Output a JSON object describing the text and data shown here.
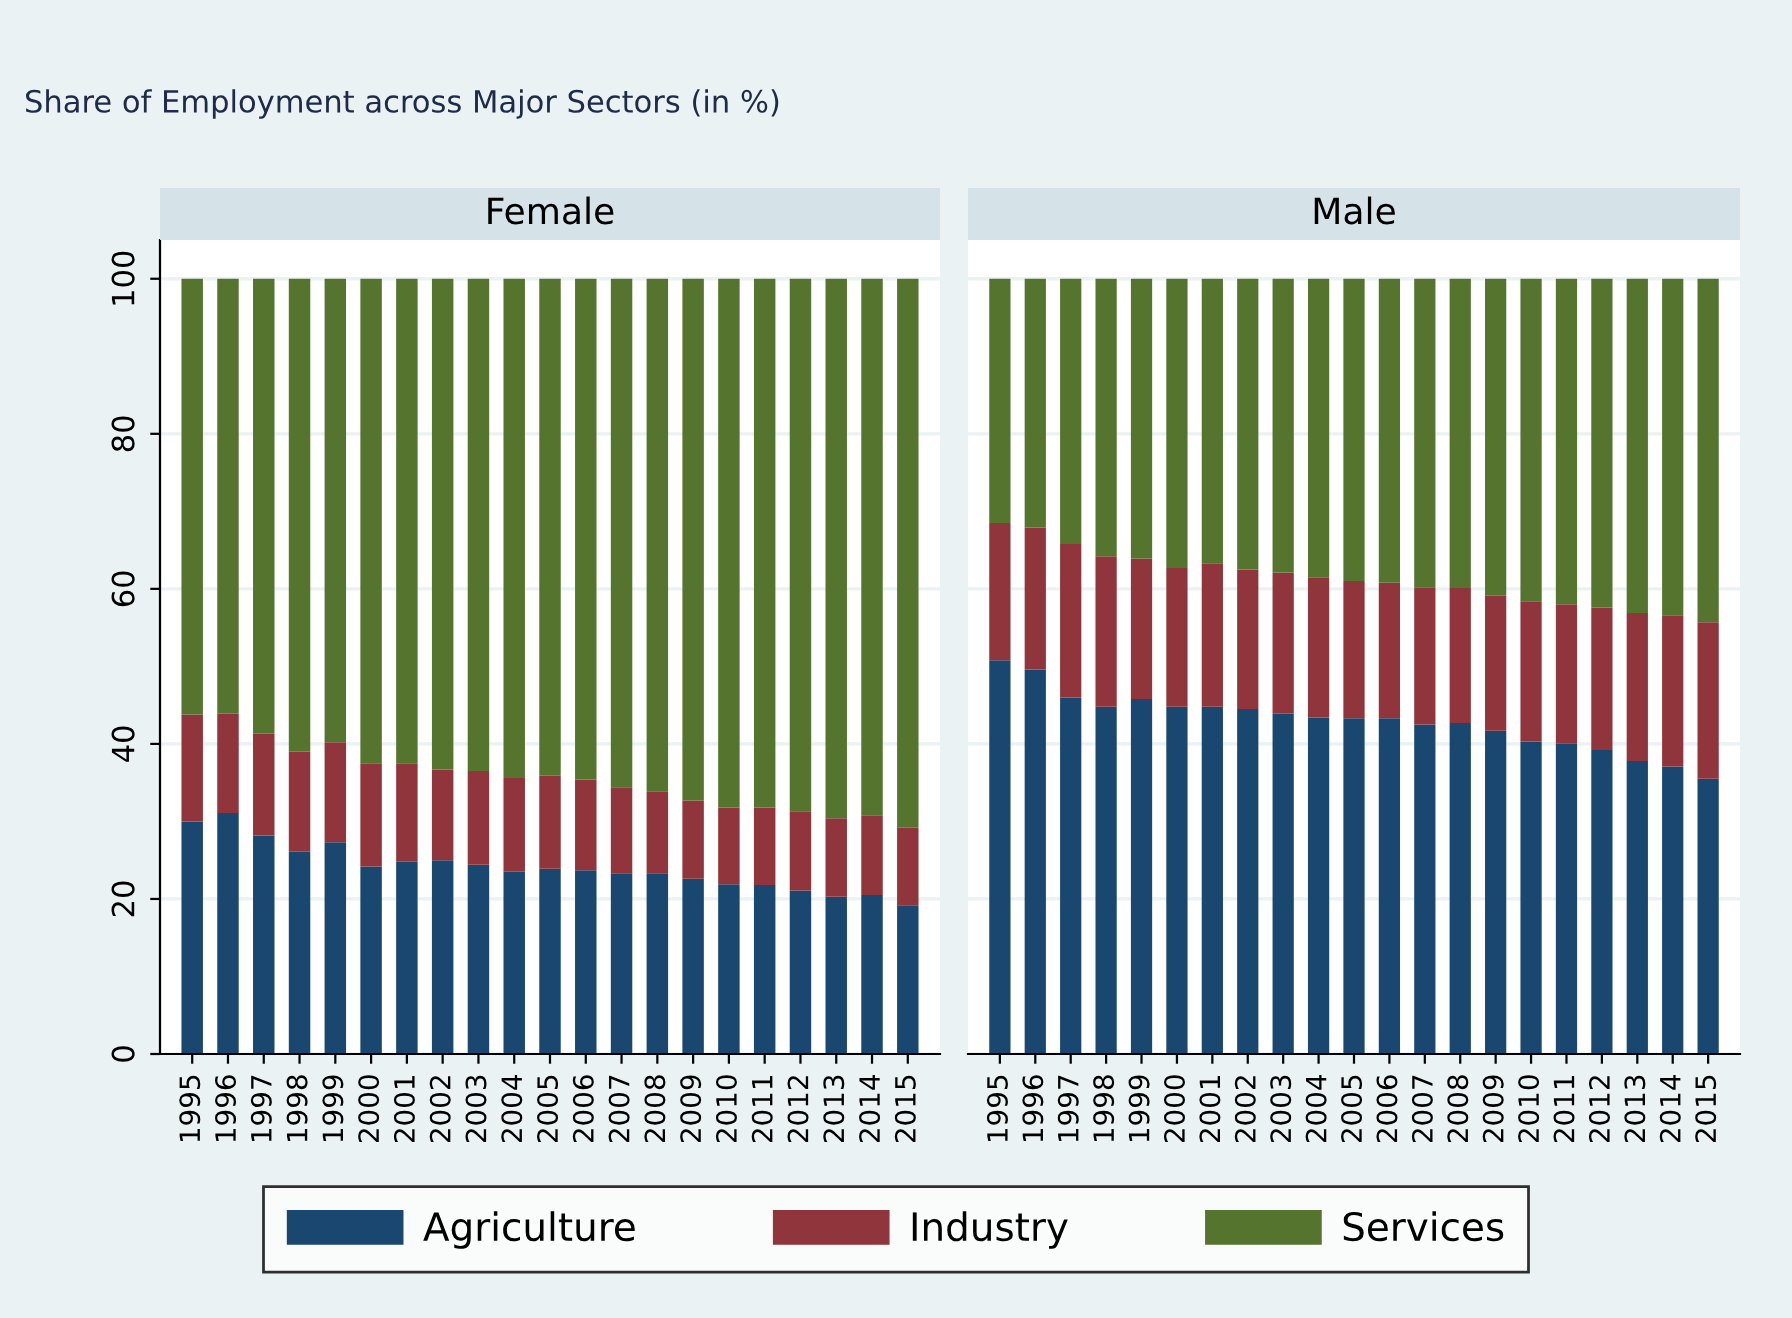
{
  "chart_data": [
    {
      "type": "bar",
      "title": "Female",
      "annotations": [
        "Share of Employment across Major Sectors (in %)"
      ],
      "stacked": true,
      "categories": [
        "1995",
        "1996",
        "1997",
        "1998",
        "1999",
        "2000",
        "2001",
        "2002",
        "2003",
        "2004",
        "2005",
        "2006",
        "2007",
        "2008",
        "2009",
        "2010",
        "2011",
        "2012",
        "2013",
        "2014",
        "2015"
      ],
      "series": [
        {
          "name": "Agriculture",
          "color": "#1a476f",
          "values": [
            30.0,
            31.1,
            28.2,
            26.1,
            27.3,
            24.2,
            24.8,
            25.0,
            24.4,
            23.5,
            23.9,
            23.7,
            23.3,
            23.3,
            22.6,
            21.9,
            21.8,
            21.1,
            20.3,
            20.5,
            19.2
          ]
        },
        {
          "name": "Industry",
          "color": "#90353b",
          "values": [
            13.8,
            12.8,
            13.1,
            12.9,
            12.9,
            13.3,
            12.7,
            11.7,
            12.1,
            12.1,
            12.0,
            11.7,
            11.1,
            10.6,
            10.1,
            9.9,
            10.0,
            10.2,
            10.1,
            10.3,
            10.0
          ]
        },
        {
          "name": "Services",
          "color": "#55752f",
          "values": [
            56.2,
            56.1,
            58.7,
            61.0,
            59.8,
            62.5,
            62.5,
            63.3,
            63.5,
            64.4,
            64.1,
            64.6,
            65.6,
            66.1,
            67.3,
            68.2,
            68.2,
            68.7,
            69.6,
            69.2,
            70.8
          ]
        }
      ],
      "ylim": [
        0,
        105
      ],
      "yticks": [
        0,
        20,
        40,
        60,
        80,
        100
      ],
      "grid": "y",
      "legend": "bottom"
    },
    {
      "type": "bar",
      "title": "Male",
      "stacked": true,
      "categories": [
        "1995",
        "1996",
        "1997",
        "1998",
        "1999",
        "2000",
        "2001",
        "2002",
        "2003",
        "2004",
        "2005",
        "2006",
        "2007",
        "2008",
        "2009",
        "2010",
        "2011",
        "2012",
        "2013",
        "2014",
        "2015"
      ],
      "series": [
        {
          "color": "#1a476f",
          "values": [
            50.8,
            49.6,
            46.0,
            44.8,
            45.8,
            44.8,
            44.8,
            44.5,
            43.9,
            43.4,
            43.3,
            43.3,
            42.5,
            42.7,
            41.7,
            40.3,
            40.1,
            39.2,
            37.8,
            37.1,
            35.5
          ]
        },
        {
          "color": "#90353b",
          "values": [
            17.7,
            18.3,
            19.8,
            19.4,
            18.1,
            17.9,
            18.5,
            18.0,
            18.2,
            18.1,
            17.7,
            17.5,
            17.7,
            17.4,
            17.4,
            18.1,
            17.9,
            18.4,
            19.1,
            19.5,
            20.2
          ]
        },
        {
          "color": "#55752f",
          "values": [
            31.5,
            32.1,
            34.2,
            35.8,
            36.1,
            37.3,
            36.7,
            37.5,
            37.9,
            38.5,
            39.0,
            39.2,
            39.8,
            39.9,
            40.9,
            41.6,
            42.0,
            42.4,
            43.1,
            43.4,
            44.3
          ]
        }
      ],
      "ylim": [
        0,
        105
      ],
      "yticks": [
        0,
        20,
        40,
        60,
        80,
        100
      ],
      "grid": "y",
      "tick_labels": "x"
    }
  ]
}
